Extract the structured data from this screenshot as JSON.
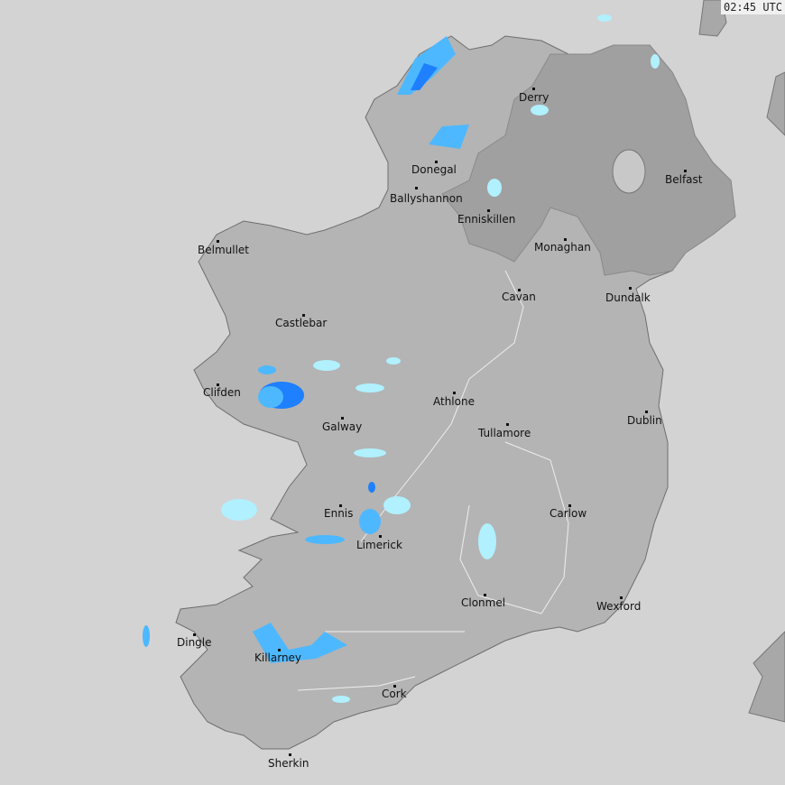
{
  "timestamp": "02:45 UTC",
  "colors": {
    "sea": "#d3d3d3",
    "land": "#b4b4b4",
    "northern_ireland": "#a0a0a0",
    "neighbour_land": "#a8a8a8",
    "rain_heavy": "#1e7fff",
    "rain_moderate": "#4db8ff",
    "rain_light": "#b0f0ff"
  },
  "cities": [
    {
      "name": "Derry"
    },
    {
      "name": "Donegal"
    },
    {
      "name": "Ballyshannon"
    },
    {
      "name": "Enniskillen"
    },
    {
      "name": "Belfast"
    },
    {
      "name": "Monaghan"
    },
    {
      "name": "Belmullet"
    },
    {
      "name": "Cavan"
    },
    {
      "name": "Dundalk"
    },
    {
      "name": "Castlebar"
    },
    {
      "name": "Clifden"
    },
    {
      "name": "Athlone"
    },
    {
      "name": "Galway"
    },
    {
      "name": "Tullamore"
    },
    {
      "name": "Dublin"
    },
    {
      "name": "Ennis"
    },
    {
      "name": "Carlow"
    },
    {
      "name": "Limerick"
    },
    {
      "name": "Clonmel"
    },
    {
      "name": "Wexford"
    },
    {
      "name": "Dingle"
    },
    {
      "name": "Killarney"
    },
    {
      "name": "Cork"
    },
    {
      "name": "Sherkin"
    }
  ]
}
